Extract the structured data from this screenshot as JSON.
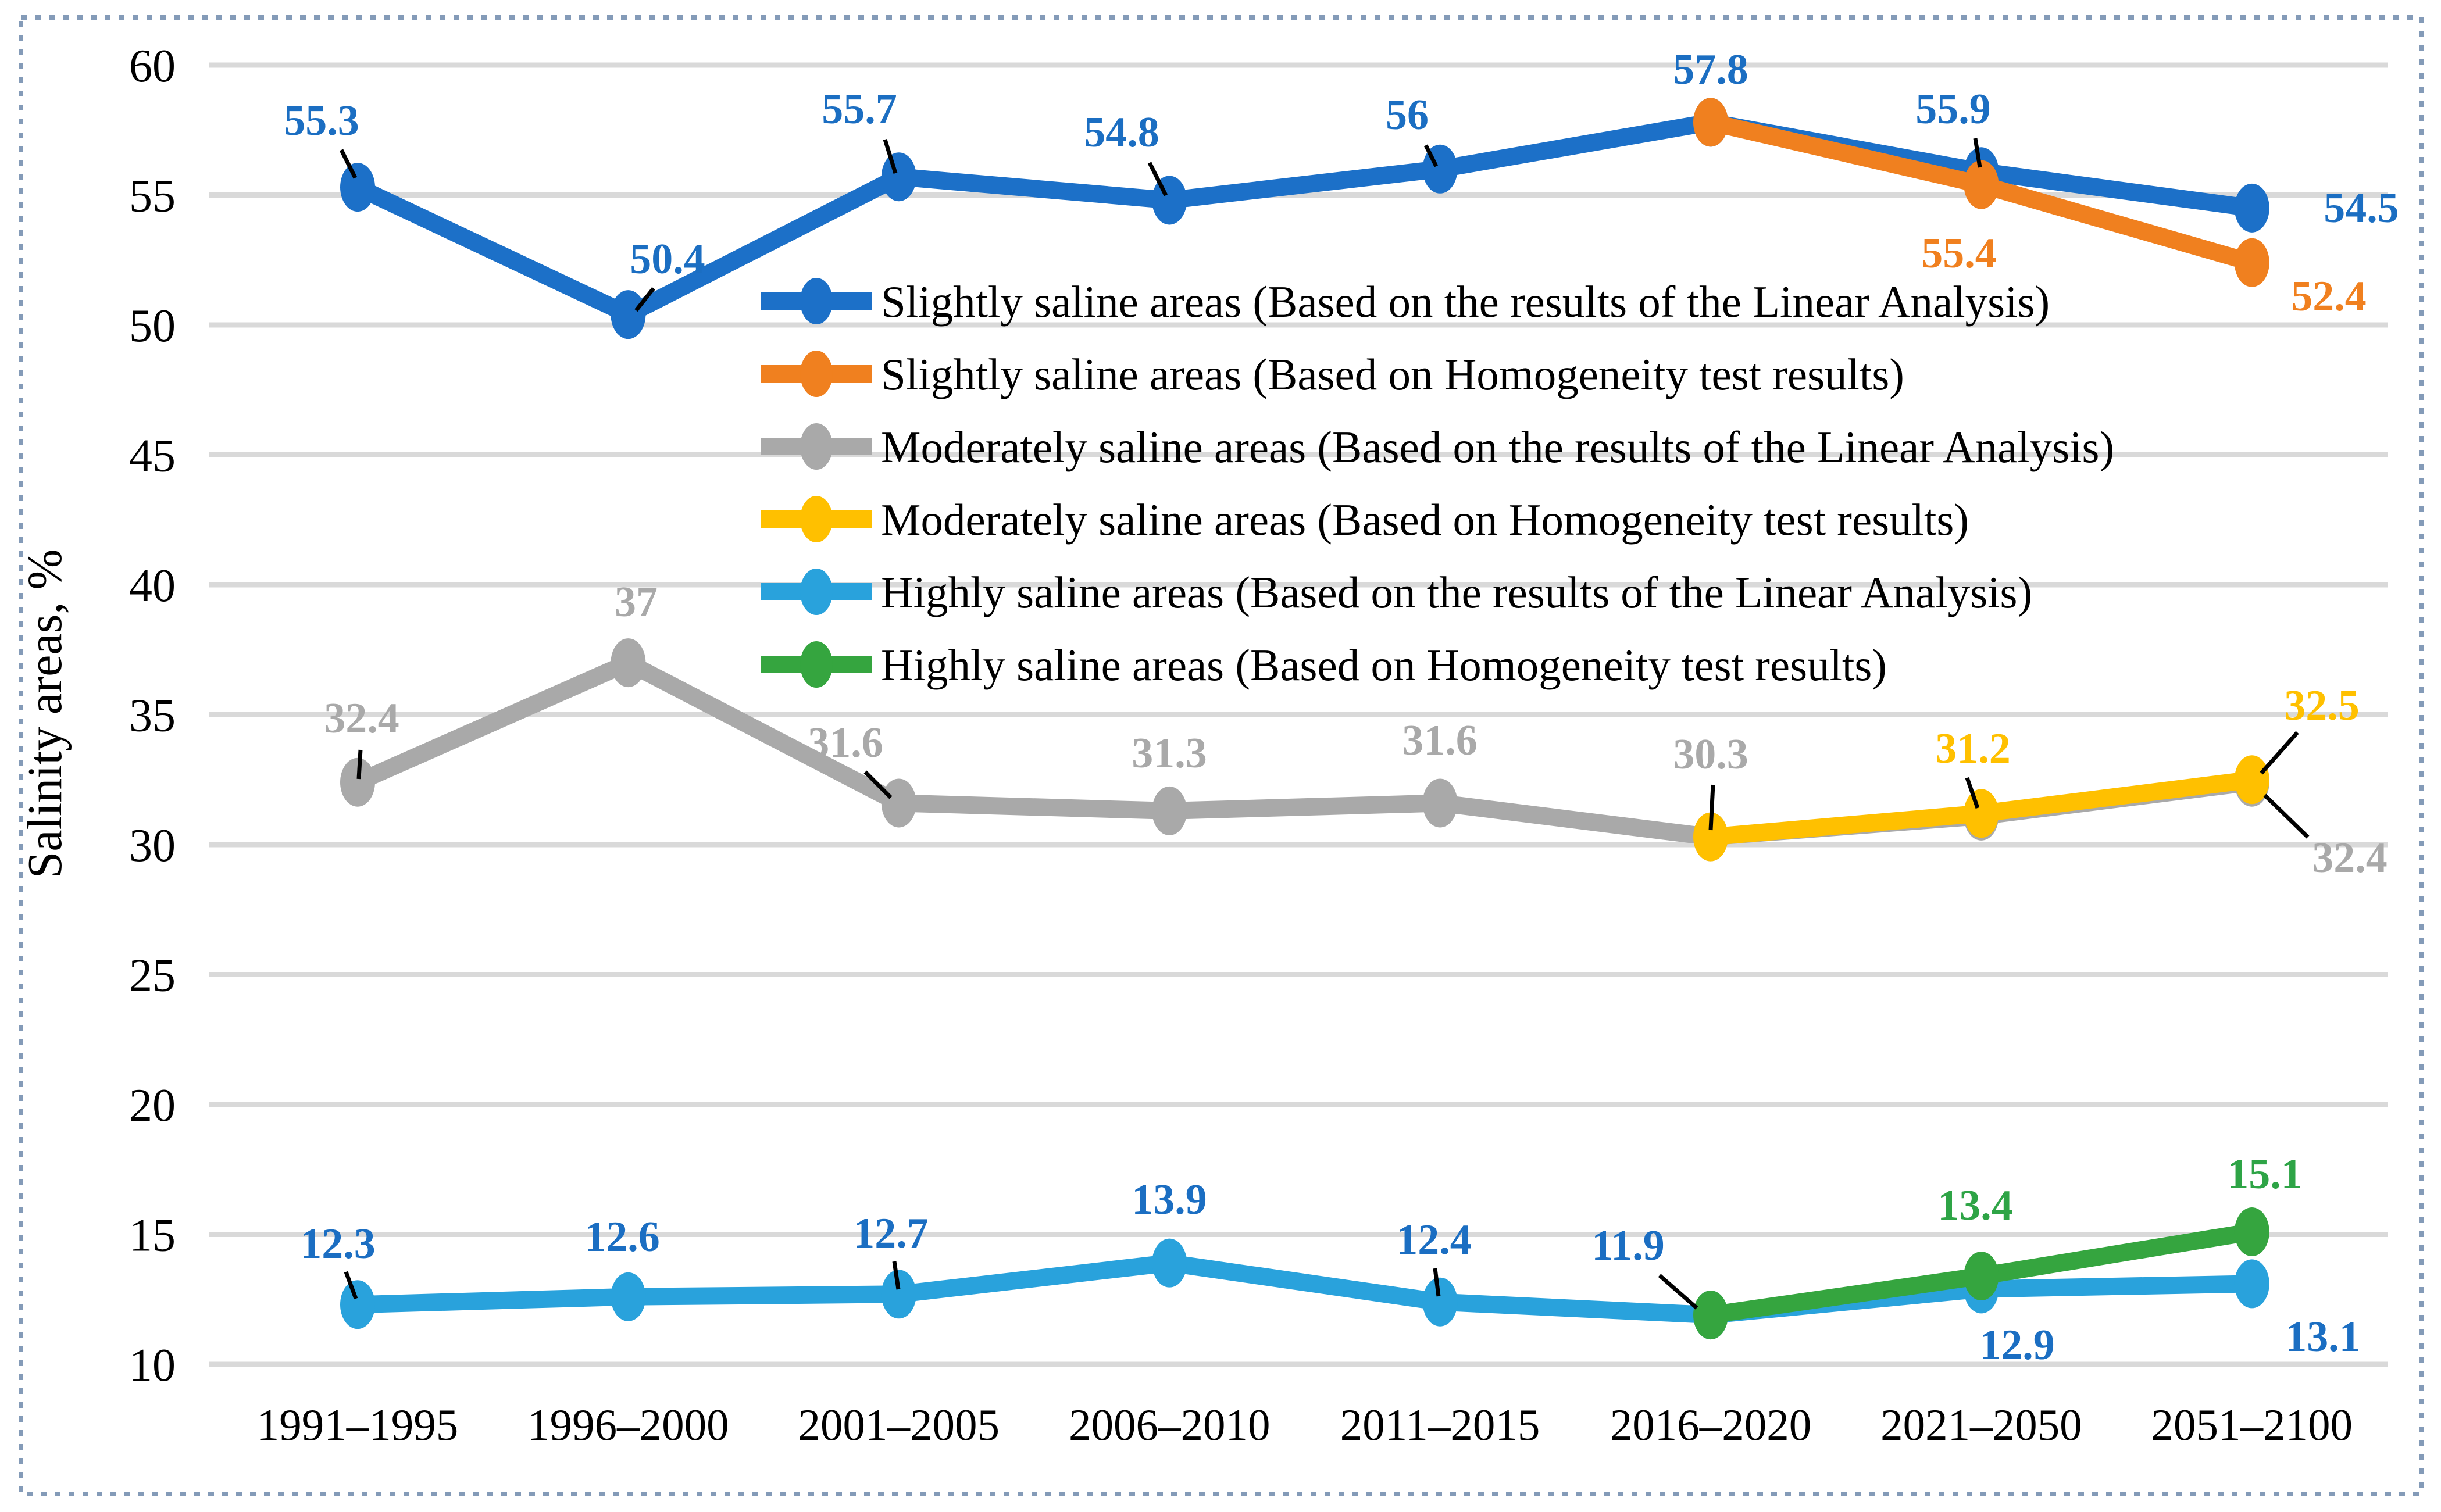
{
  "figure": {
    "background_color": "#FFFFFF",
    "border_color": "#849BB8",
    "gridline_color": "#D9D9D9",
    "leader_line_color": "#000000"
  },
  "chart_data": {
    "type": "line",
    "title": "",
    "xlabel": "",
    "ylabel": "Salinity areas, %",
    "ylim": [
      10,
      60
    ],
    "ytick_interval": 5,
    "ytick_labels": [
      "60",
      "55",
      "50",
      "45",
      "40",
      "35",
      "30",
      "25",
      "20",
      "15",
      "10"
    ],
    "grid": true,
    "legend_position": "inside-top-right",
    "categories": [
      "1991–1995",
      "1996–2000",
      "2001–2005",
      "2006–2010",
      "2011–2015",
      "2016–2020",
      "2021–2050",
      "2051–2100"
    ],
    "series": [
      {
        "name": "Slightly saline areas (Based on the results of the Linear Analysis)",
        "color": "#1C70C8",
        "label_color": "#1B6EC2",
        "values": [
          55.3,
          50.4,
          55.7,
          54.8,
          56,
          57.8,
          55.9,
          54.5
        ],
        "labels": [
          "55.3",
          "50.4",
          "55.7",
          "54.8",
          "56",
          "57.8",
          "55.9",
          "54.5"
        ]
      },
      {
        "name": "Slightly saline areas (Based on Homogeneity test results)",
        "color": "#F0801F",
        "label_color": "#F0801F",
        "values": [
          null,
          null,
          null,
          null,
          null,
          57.8,
          55.4,
          52.4
        ],
        "labels": [
          "",
          "",
          "",
          "",
          "",
          "",
          "55.4",
          "52.4"
        ]
      },
      {
        "name": "Moderately saline areas (Based on the results of the Linear Analysis)",
        "color": "#A9A9A9",
        "label_color": "#A9A9A9",
        "values": [
          32.4,
          37,
          31.6,
          31.3,
          31.6,
          30.3,
          31.1,
          32.4
        ],
        "labels": [
          "32.4",
          "37",
          "31.6",
          "31.3",
          "31.6",
          "30.3",
          "",
          "32.4"
        ]
      },
      {
        "name": "Moderately saline areas (Based on Homogeneity test results)",
        "color": "#FFC000",
        "label_color": "#FFC000",
        "values": [
          null,
          null,
          null,
          null,
          null,
          30.3,
          31.2,
          32.5
        ],
        "labels": [
          "",
          "",
          "",
          "",
          "",
          "",
          "31.2",
          "32.5"
        ]
      },
      {
        "name": "Highly saline areas (Based on the results of the Linear Analysis)",
        "color": "#29A2DC",
        "label_color": "#1B6EC2",
        "values": [
          12.3,
          12.6,
          12.7,
          13.9,
          12.4,
          11.9,
          12.9,
          13.1
        ],
        "labels": [
          "12.3",
          "12.6",
          "12.7",
          "13.9",
          "12.4",
          "11.9",
          "12.9",
          "13.1"
        ]
      },
      {
        "name": "Highly saline areas (Based on Homogeneity test results)",
        "color": "#35A53F",
        "label_color": "#2EA446",
        "values": [
          null,
          null,
          null,
          null,
          null,
          11.9,
          13.4,
          15.1
        ],
        "labels": [
          "",
          "",
          "",
          "",
          "",
          "",
          "13.4",
          "15.1"
        ]
      }
    ]
  }
}
